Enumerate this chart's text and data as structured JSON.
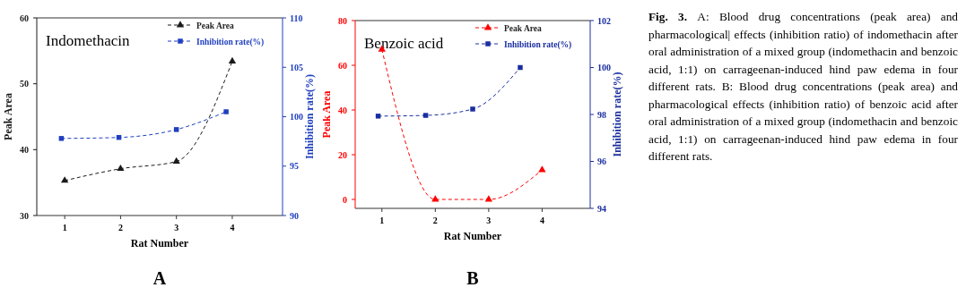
{
  "chart_data": [
    {
      "type": "line",
      "title": "Indomethacin",
      "xlabel": "Rat Number",
      "ylabel": "Peak Area",
      "y2label": "Inhibition rate(%)",
      "xlim": [
        0.5,
        4.9
      ],
      "xticks": [
        1,
        2,
        3,
        4
      ],
      "ylim": [
        30,
        60
      ],
      "yticks": [
        30,
        40,
        50,
        60
      ],
      "y2lim": [
        90,
        110
      ],
      "y2ticks": [
        90,
        95,
        100,
        105,
        110
      ],
      "legend": "top right",
      "line_style": "dashed",
      "series": [
        {
          "name": "Peak Area",
          "color": "#1a1a1a",
          "marker": "triangle",
          "x": [
            1,
            2,
            3,
            4
          ],
          "values": [
            35.3,
            37.1,
            38.2,
            53.4
          ]
        },
        {
          "name": "Inhibition rate(%)",
          "color": "#1f3fbf",
          "marker": "square",
          "axis": "y2",
          "x": [
            0.94,
            1.97,
            3.0,
            3.89
          ],
          "values": [
            97.8,
            97.9,
            98.7,
            100.5
          ]
        }
      ],
      "annotations": [
        "A"
      ]
    },
    {
      "type": "line",
      "title": "Benzoic acid",
      "xlabel": "Rat Number",
      "ylabel": "Peak Area",
      "y2label": "Inhibition rate(%)",
      "xlim": [
        0.5,
        4.9
      ],
      "xticks": [
        1,
        2,
        3,
        4
      ],
      "ylim": [
        -4,
        80
      ],
      "yticks": [
        0,
        20,
        40,
        60,
        80
      ],
      "y2lim": [
        94,
        102
      ],
      "y2ticks": [
        94,
        96,
        98,
        100,
        102
      ],
      "legend": "top right",
      "line_style": "dashed",
      "series": [
        {
          "name": "Peak Area",
          "color": "#ff0000",
          "marker": "triangle",
          "x": [
            1,
            2,
            3,
            4
          ],
          "values": [
            67.1,
            0,
            0,
            13.2
          ]
        },
        {
          "name": "Inhibition rate(%)",
          "color": "#1a2ea0",
          "marker": "square",
          "axis": "y2",
          "x": [
            0.93,
            1.82,
            2.7,
            3.59
          ],
          "values": [
            97.93,
            97.96,
            98.23,
            100
          ]
        }
      ],
      "annotations": [
        "B"
      ]
    },
    {
      "type": "other",
      "title": "Fig. 3.",
      "annotations": [
        "A: Blood drug concentrations (peak area) and pharmacological| effects (inhibition ratio) of indomethacin after oral administration of a mixed group (indomethacin and benzoic acid, 1:1) on carrageenan-induced hind paw edema in four different rats. B: Blood drug concentrations (peak area) and pharmacological effects (inhibition ratio) of benzoic acid after oral administration of a mixed group (indomethacin and benzoic acid, 1:1) on carrageenan-induced hind paw edema in four different rats."
      ]
    }
  ]
}
